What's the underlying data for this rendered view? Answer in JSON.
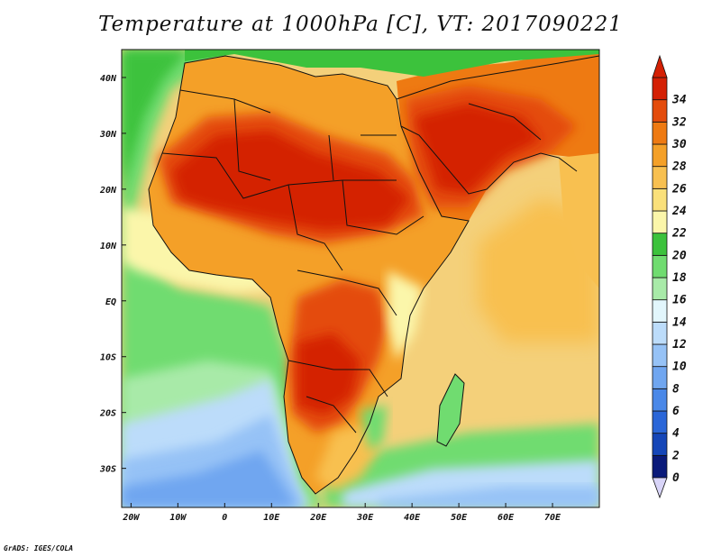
{
  "title": "Temperature at 1000hPa [C], VT: 2017090221",
  "credit": "GrADS: IGES/COLA",
  "map": {
    "lon_range": [
      -22,
      80
    ],
    "lat_range": [
      -37,
      45
    ],
    "lon_ticks": [
      {
        "value": -20,
        "label": "20W"
      },
      {
        "value": -10,
        "label": "10W"
      },
      {
        "value": 0,
        "label": "0"
      },
      {
        "value": 10,
        "label": "10E"
      },
      {
        "value": 20,
        "label": "20E"
      },
      {
        "value": 30,
        "label": "30E"
      },
      {
        "value": 40,
        "label": "40E"
      },
      {
        "value": 50,
        "label": "50E"
      },
      {
        "value": 60,
        "label": "60E"
      },
      {
        "value": 70,
        "label": "70E"
      }
    ],
    "lat_ticks": [
      {
        "value": 40,
        "label": "40N"
      },
      {
        "value": 30,
        "label": "30N"
      },
      {
        "value": 20,
        "label": "20N"
      },
      {
        "value": 10,
        "label": "10N"
      },
      {
        "value": 0,
        "label": "EQ"
      },
      {
        "value": -10,
        "label": "10S"
      },
      {
        "value": -20,
        "label": "20S"
      },
      {
        "value": -30,
        "label": "30S"
      }
    ]
  },
  "colorbar": {
    "levels": [
      0,
      2,
      4,
      6,
      8,
      10,
      12,
      14,
      16,
      18,
      20,
      22,
      24,
      26,
      28,
      30,
      32,
      34
    ],
    "colors": [
      "#0a1a7a",
      "#1546b8",
      "#2a66d8",
      "#4a88e8",
      "#70a6f0",
      "#96c2f6",
      "#bcdcfa",
      "#e2f6fc",
      "#a8eaa8",
      "#70dc70",
      "#3cc23c",
      "#fbf6aa",
      "#fae07a",
      "#f8c050",
      "#f4a028",
      "#ee7a12",
      "#e44c0c",
      "#d42004"
    ]
  }
}
